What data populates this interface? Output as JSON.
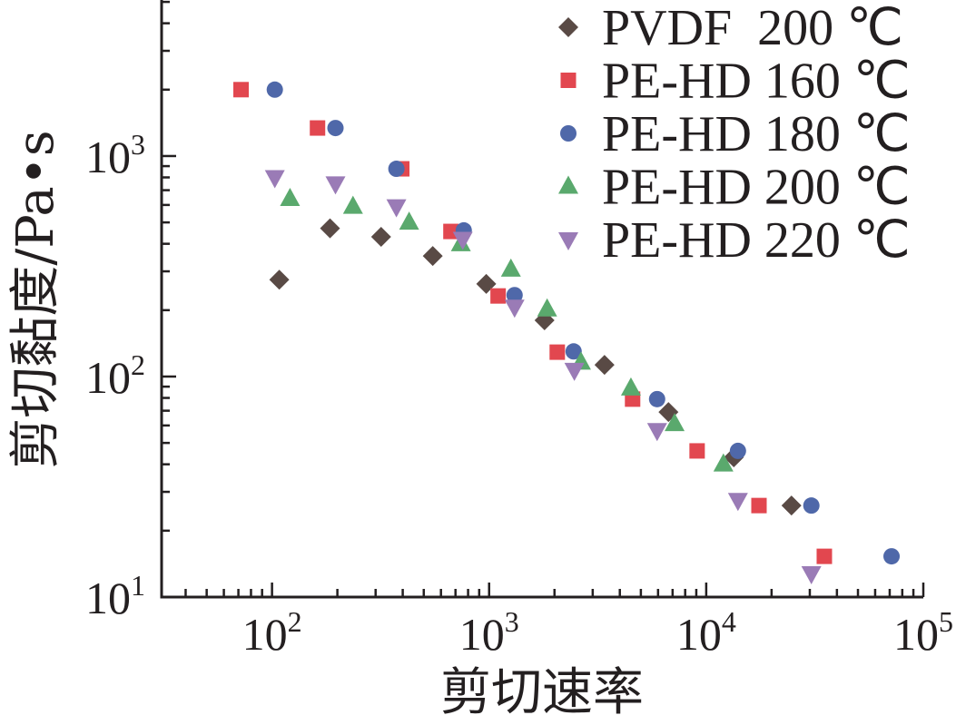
{
  "chart_data": {
    "type": "scatter",
    "xlabel": "剪切速率",
    "ylabel": "剪切黏度/Pa•s",
    "xscale": "log",
    "yscale": "log",
    "xlim": [
      31,
      100000
    ],
    "ylim": [
      10,
      5100
    ],
    "grid": false,
    "legend_position": "top-right",
    "xticks": [
      {
        "value": 100,
        "base": "10",
        "exp": "2"
      },
      {
        "value": 1000,
        "base": "10",
        "exp": "3"
      },
      {
        "value": 10000,
        "base": "10",
        "exp": "4"
      },
      {
        "value": 100000,
        "base": "10",
        "exp": "5"
      }
    ],
    "yticks": [
      {
        "value": 10,
        "base": "10",
        "exp": "1"
      },
      {
        "value": 100,
        "base": "10",
        "exp": "2"
      },
      {
        "value": 1000,
        "base": "10",
        "exp": "3"
      }
    ],
    "series": [
      {
        "name": "PVDF  200 ℃",
        "marker": "diamond",
        "color": "#594a45",
        "points": [
          [
            108,
            275
          ],
          [
            185,
            470
          ],
          [
            318,
            430
          ],
          [
            550,
            352
          ],
          [
            970,
            263
          ],
          [
            1800,
            180
          ],
          [
            3400,
            113
          ],
          [
            6700,
            69
          ],
          [
            13400,
            43
          ],
          [
            24700,
            26
          ]
        ]
      },
      {
        "name": "PE-HD 160 ℃",
        "marker": "square",
        "color": "#e2474f",
        "points": [
          [
            72,
            2000
          ],
          [
            162,
            1340
          ],
          [
            396,
            875
          ],
          [
            667,
            455
          ],
          [
            1100,
            232
          ],
          [
            2060,
            129
          ],
          [
            4580,
            79
          ],
          [
            9080,
            46
          ],
          [
            17500,
            26
          ],
          [
            35000,
            15.3
          ]
        ]
      },
      {
        "name": "PE-HD 180 ℃",
        "marker": "circle",
        "color": "#4f68a9",
        "points": [
          [
            103,
            2000
          ],
          [
            196,
            1340
          ],
          [
            374,
            875
          ],
          [
            764,
            460
          ],
          [
            1310,
            234
          ],
          [
            2450,
            130
          ],
          [
            5940,
            79
          ],
          [
            14000,
            46
          ],
          [
            30500,
            26
          ],
          [
            71400,
            15.3
          ]
        ]
      },
      {
        "name": "PE-HD 200 ℃",
        "marker": "triangle-up",
        "color": "#5aa96d",
        "points": [
          [
            121,
            640
          ],
          [
            236,
            590
          ],
          [
            428,
            500
          ],
          [
            741,
            399
          ],
          [
            1260,
            306
          ],
          [
            1850,
            202
          ],
          [
            2650,
            116
          ],
          [
            4500,
            88.5
          ],
          [
            7150,
            61
          ],
          [
            12000,
            40
          ]
        ]
      },
      {
        "name": "PE-HD 220 ℃",
        "marker": "triangle-down",
        "color": "#9a7bb6",
        "points": [
          [
            103,
            800
          ],
          [
            196,
            750
          ],
          [
            374,
            590
          ],
          [
            756,
            420
          ],
          [
            1310,
            207
          ],
          [
            2470,
            107
          ],
          [
            5940,
            57
          ],
          [
            14000,
            27.5
          ],
          [
            30500,
            12.8
          ]
        ]
      }
    ]
  }
}
